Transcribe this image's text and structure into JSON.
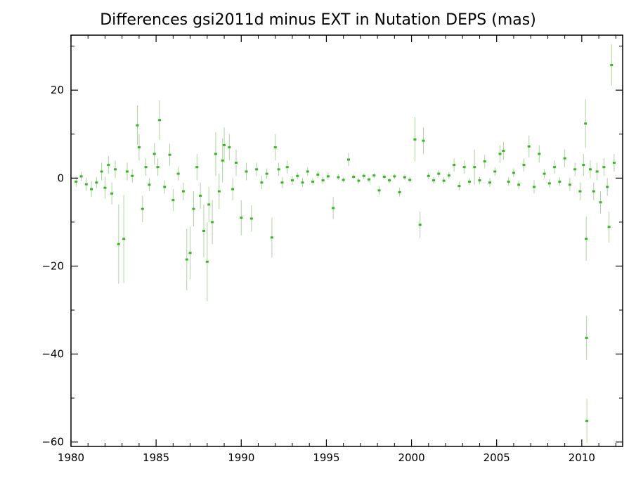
{
  "chart_data": {
    "type": "scatter",
    "title": "Differences gsi2011d minus EXT in Nutation DEPS (mas)",
    "xlabel": "",
    "ylabel": "",
    "xlim": [
      1980,
      2012.4
    ],
    "ylim": [
      -61,
      32.5
    ],
    "x_ticks": [
      1980,
      1985,
      1990,
      1995,
      2000,
      2005,
      2010
    ],
    "y_ticks": [
      20,
      0,
      -20,
      -40,
      -60
    ],
    "x_tick_labels": [
      "1980",
      "1985",
      "1990",
      "1995",
      "2000",
      "2005",
      "2010"
    ],
    "y_tick_labels": [
      "20",
      "0",
      "−20",
      "−40",
      "−60"
    ],
    "grid": false,
    "point_color": "#3cb428",
    "errorbar_color": "#a9d69c",
    "series": [
      {
        "errorbars": true,
        "points": [
          {
            "x": 1980.3,
            "y": -0.8,
            "err": 1.2
          },
          {
            "x": 1980.6,
            "y": 0.4,
            "err": 1.0
          },
          {
            "x": 1980.9,
            "y": -1.4,
            "err": 1.5
          },
          {
            "x": 1981.2,
            "y": -2.5,
            "err": 1.8
          },
          {
            "x": 1981.5,
            "y": -1.0,
            "err": 1.2
          },
          {
            "x": 1981.8,
            "y": 1.5,
            "err": 2.0
          },
          {
            "x": 1982.0,
            "y": -2.2,
            "err": 2.5
          },
          {
            "x": 1982.2,
            "y": 3.0,
            "err": 2.0
          },
          {
            "x": 1982.4,
            "y": -3.5,
            "err": 2.5
          },
          {
            "x": 1982.6,
            "y": 2.0,
            "err": 2.0
          },
          {
            "x": 1982.8,
            "y": -15.0,
            "err": 9.0
          },
          {
            "x": 1983.1,
            "y": -13.8,
            "err": 10.0
          },
          {
            "x": 1983.3,
            "y": 1.5,
            "err": 2.0
          },
          {
            "x": 1983.6,
            "y": 0.5,
            "err": 1.5
          },
          {
            "x": 1983.9,
            "y": 12.0,
            "err": 4.5
          },
          {
            "x": 1984.0,
            "y": 7.0,
            "err": 3.0
          },
          {
            "x": 1984.2,
            "y": -7.0,
            "err": 3.0
          },
          {
            "x": 1984.4,
            "y": 2.5,
            "err": 2.0
          },
          {
            "x": 1984.6,
            "y": -1.5,
            "err": 1.5
          },
          {
            "x": 1984.9,
            "y": 5.5,
            "err": 2.5
          },
          {
            "x": 1985.1,
            "y": 2.5,
            "err": 2.0
          },
          {
            "x": 1985.2,
            "y": 13.2,
            "err": 4.5
          },
          {
            "x": 1985.5,
            "y": -2.0,
            "err": 1.5
          },
          {
            "x": 1985.8,
            "y": 5.3,
            "err": 2.5
          },
          {
            "x": 1986.0,
            "y": -5.0,
            "err": 2.5
          },
          {
            "x": 1986.3,
            "y": 1.0,
            "err": 1.5
          },
          {
            "x": 1986.6,
            "y": -3.0,
            "err": 2.0
          },
          {
            "x": 1986.8,
            "y": -18.5,
            "err": 7.0
          },
          {
            "x": 1987.0,
            "y": -17.0,
            "err": 6.0
          },
          {
            "x": 1987.2,
            "y": -7.0,
            "err": 4.0
          },
          {
            "x": 1987.4,
            "y": 2.5,
            "err": 3.0
          },
          {
            "x": 1987.6,
            "y": -4.0,
            "err": 3.0
          },
          {
            "x": 1987.8,
            "y": -12.0,
            "err": 6.0
          },
          {
            "x": 1988.0,
            "y": -19.0,
            "err": 9.0
          },
          {
            "x": 1988.1,
            "y": -6.0,
            "err": 4.0
          },
          {
            "x": 1988.3,
            "y": -10.0,
            "err": 5.0
          },
          {
            "x": 1988.5,
            "y": 5.5,
            "err": 5.0
          },
          {
            "x": 1988.7,
            "y": -3.0,
            "err": 4.0
          },
          {
            "x": 1988.9,
            "y": 4.0,
            "err": 5.0
          },
          {
            "x": 1989.0,
            "y": 7.5,
            "err": 4.0
          },
          {
            "x": 1989.3,
            "y": 7.0,
            "err": 3.0
          },
          {
            "x": 1989.5,
            "y": -2.5,
            "err": 2.5
          },
          {
            "x": 1989.7,
            "y": 3.5,
            "err": 3.0
          },
          {
            "x": 1990.0,
            "y": -9.0,
            "err": 4.0
          },
          {
            "x": 1990.3,
            "y": 1.5,
            "err": 2.0
          },
          {
            "x": 1990.6,
            "y": -9.2,
            "err": 3.0
          },
          {
            "x": 1990.9,
            "y": 2.0,
            "err": 1.5
          },
          {
            "x": 1991.2,
            "y": -1.0,
            "err": 1.5
          },
          {
            "x": 1991.5,
            "y": 1.0,
            "err": 1.2
          },
          {
            "x": 1991.8,
            "y": -13.5,
            "err": 4.5
          },
          {
            "x": 1992.0,
            "y": 7.0,
            "err": 3.0
          },
          {
            "x": 1992.2,
            "y": 2.0,
            "err": 1.5
          },
          {
            "x": 1992.4,
            "y": -1.0,
            "err": 1.2
          },
          {
            "x": 1992.7,
            "y": 2.5,
            "err": 1.5
          },
          {
            "x": 1993.0,
            "y": -0.5,
            "err": 1.0
          },
          {
            "x": 1993.3,
            "y": 0.5,
            "err": 0.8
          },
          {
            "x": 1993.6,
            "y": -1.0,
            "err": 1.0
          },
          {
            "x": 1993.9,
            "y": 1.5,
            "err": 1.0
          },
          {
            "x": 1994.2,
            "y": -0.8,
            "err": 0.8
          },
          {
            "x": 1994.5,
            "y": 0.8,
            "err": 0.8
          },
          {
            "x": 1994.8,
            "y": -0.5,
            "err": 0.8
          },
          {
            "x": 1995.1,
            "y": 0.4,
            "err": 0.8
          },
          {
            "x": 1995.4,
            "y": -6.8,
            "err": 2.5
          },
          {
            "x": 1995.7,
            "y": 0.2,
            "err": 0.6
          },
          {
            "x": 1996.0,
            "y": -0.4,
            "err": 0.6
          },
          {
            "x": 1996.3,
            "y": 4.2,
            "err": 1.5
          },
          {
            "x": 1996.6,
            "y": 0.3,
            "err": 0.6
          },
          {
            "x": 1996.9,
            "y": -0.6,
            "err": 0.6
          },
          {
            "x": 1997.2,
            "y": 0.5,
            "err": 0.6
          },
          {
            "x": 1997.5,
            "y": -0.3,
            "err": 0.6
          },
          {
            "x": 1997.8,
            "y": 0.6,
            "err": 0.6
          },
          {
            "x": 1998.1,
            "y": -2.8,
            "err": 1.0
          },
          {
            "x": 1998.4,
            "y": 0.3,
            "err": 0.6
          },
          {
            "x": 1998.7,
            "y": -0.5,
            "err": 0.6
          },
          {
            "x": 1999.0,
            "y": 0.4,
            "err": 0.6
          },
          {
            "x": 1999.3,
            "y": -3.2,
            "err": 1.0
          },
          {
            "x": 1999.6,
            "y": 0.2,
            "err": 0.6
          },
          {
            "x": 1999.9,
            "y": -0.4,
            "err": 0.6
          },
          {
            "x": 2000.2,
            "y": 8.8,
            "err": 5.0
          },
          {
            "x": 2000.5,
            "y": -10.6,
            "err": 3.0
          },
          {
            "x": 2000.7,
            "y": 8.5,
            "err": 3.0
          },
          {
            "x": 2001.0,
            "y": 0.5,
            "err": 0.8
          },
          {
            "x": 2001.3,
            "y": -0.5,
            "err": 0.8
          },
          {
            "x": 2001.6,
            "y": 1.0,
            "err": 0.8
          },
          {
            "x": 2001.9,
            "y": -0.6,
            "err": 0.8
          },
          {
            "x": 2002.2,
            "y": 0.6,
            "err": 0.8
          },
          {
            "x": 2002.5,
            "y": 3.0,
            "err": 1.5
          },
          {
            "x": 2002.8,
            "y": -1.8,
            "err": 1.0
          },
          {
            "x": 2003.1,
            "y": 2.5,
            "err": 1.5
          },
          {
            "x": 2003.4,
            "y": -0.8,
            "err": 0.8
          },
          {
            "x": 2003.7,
            "y": 2.5,
            "err": 4.0
          },
          {
            "x": 2004.0,
            "y": -0.5,
            "err": 0.8
          },
          {
            "x": 2004.3,
            "y": 3.8,
            "err": 1.5
          },
          {
            "x": 2004.6,
            "y": -1.0,
            "err": 1.0
          },
          {
            "x": 2004.9,
            "y": 1.5,
            "err": 1.0
          },
          {
            "x": 2005.2,
            "y": 5.5,
            "err": 2.0
          },
          {
            "x": 2005.4,
            "y": 6.2,
            "err": 2.0
          },
          {
            "x": 2005.7,
            "y": -0.8,
            "err": 1.0
          },
          {
            "x": 2006.0,
            "y": 1.2,
            "err": 1.0
          },
          {
            "x": 2006.3,
            "y": -1.5,
            "err": 1.0
          },
          {
            "x": 2006.6,
            "y": 3.0,
            "err": 1.5
          },
          {
            "x": 2006.9,
            "y": 7.2,
            "err": 2.5
          },
          {
            "x": 2007.2,
            "y": -2.0,
            "err": 1.5
          },
          {
            "x": 2007.5,
            "y": 5.5,
            "err": 2.0
          },
          {
            "x": 2007.8,
            "y": 1.0,
            "err": 1.0
          },
          {
            "x": 2008.1,
            "y": -1.2,
            "err": 1.0
          },
          {
            "x": 2008.4,
            "y": 2.5,
            "err": 1.5
          },
          {
            "x": 2008.7,
            "y": -0.8,
            "err": 1.0
          },
          {
            "x": 2009.0,
            "y": 4.5,
            "err": 2.0
          },
          {
            "x": 2009.3,
            "y": -1.5,
            "err": 1.5
          },
          {
            "x": 2009.6,
            "y": 2.0,
            "err": 1.5
          },
          {
            "x": 2009.9,
            "y": -3.0,
            "err": 2.0
          },
          {
            "x": 2010.1,
            "y": 3.0,
            "err": 2.5
          },
          {
            "x": 2010.22,
            "y": 12.4,
            "err": 5.5
          },
          {
            "x": 2010.26,
            "y": -13.8,
            "err": 5.0
          },
          {
            "x": 2010.28,
            "y": -36.3,
            "err": 5.0
          },
          {
            "x": 2010.3,
            "y": -55.2,
            "err": 5.0
          },
          {
            "x": 2010.5,
            "y": 2.0,
            "err": 2.0
          },
          {
            "x": 2010.7,
            "y": -3.0,
            "err": 2.0
          },
          {
            "x": 2010.9,
            "y": 1.5,
            "err": 2.0
          },
          {
            "x": 2011.1,
            "y": -5.5,
            "err": 2.5
          },
          {
            "x": 2011.3,
            "y": 2.5,
            "err": 2.0
          },
          {
            "x": 2011.5,
            "y": -2.0,
            "err": 2.0
          },
          {
            "x": 2011.6,
            "y": -11.1,
            "err": 3.5
          },
          {
            "x": 2011.75,
            "y": 25.7,
            "err": 4.7
          },
          {
            "x": 2011.9,
            "y": 3.5,
            "err": 2.0
          }
        ]
      }
    ]
  }
}
